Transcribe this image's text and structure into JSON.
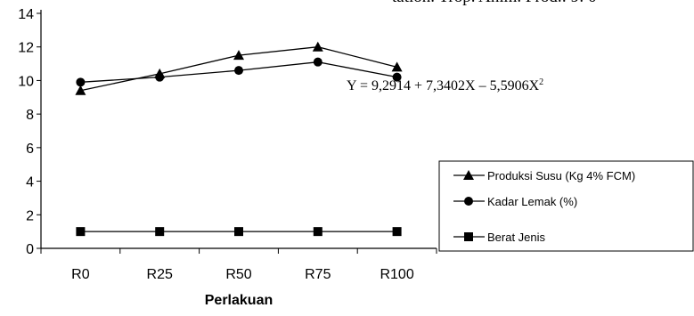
{
  "header_text": "tation. Trop. Anim. Prod.: 9: 0",
  "chart_data": {
    "type": "line",
    "categories": [
      "R0",
      "R25",
      "R50",
      "R75",
      "R100"
    ],
    "xlabel": "Perlakuan",
    "ylabel": "",
    "ylim": [
      0,
      14
    ],
    "yticks": [
      0,
      2,
      4,
      6,
      8,
      10,
      12,
      14
    ],
    "grid": false,
    "legend_position": "right",
    "series": [
      {
        "name": "Produksi Susu (Kg 4% FCM)",
        "marker": "triangle",
        "values": [
          9.4,
          10.4,
          11.5,
          12.0,
          10.8
        ]
      },
      {
        "name": "Kadar Lemak (%)",
        "marker": "circle",
        "values": [
          9.9,
          10.2,
          10.6,
          11.1,
          10.2
        ]
      },
      {
        "name": "Berat Jenis",
        "marker": "square",
        "values": [
          1.0,
          1.0,
          1.0,
          1.0,
          1.0
        ]
      }
    ],
    "annotations": [
      {
        "text": "Y = 9,2914 + 7,3402X – 5,5906X",
        "superscript": "2"
      }
    ]
  }
}
